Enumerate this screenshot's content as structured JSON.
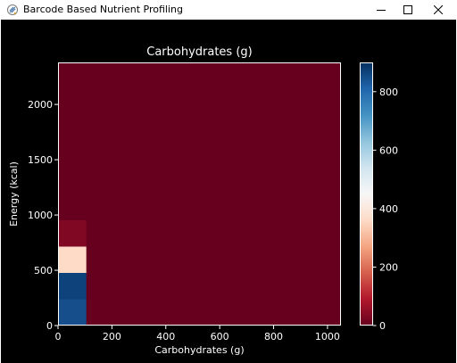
{
  "window": {
    "title": "Barcode Based Nutrient Profiling",
    "icon": "python-feather-icon",
    "controls": [
      "minimize-icon",
      "maximize-icon",
      "close-icon"
    ]
  },
  "colors": {
    "background": "#000000",
    "foreground": "#ffffff",
    "colormap": "RdBu"
  },
  "chart_data": {
    "type": "heatmap",
    "title": "Carbohydrates (g)",
    "xlabel": "Carbohydrates (g)",
    "ylabel": "Energy (kcal)",
    "xlim": [
      0,
      1050
    ],
    "ylim": [
      0,
      2380
    ],
    "x_ticks": [
      0,
      200,
      400,
      600,
      800,
      1000
    ],
    "y_ticks": [
      0,
      500,
      1000,
      1500,
      2000
    ],
    "grid": false,
    "colorbar": {
      "range": [
        0,
        900
      ],
      "ticks": [
        0,
        200,
        400,
        600,
        800
      ],
      "colormap": "RdBu"
    },
    "bin_width_x": 105,
    "bin_height_y": 238,
    "cells": [
      {
        "x0": 0,
        "y0": 0,
        "count": 850
      },
      {
        "x0": 0,
        "y0": 238,
        "count": 870
      },
      {
        "x0": 0,
        "y0": 476,
        "count": 360
      },
      {
        "x0": 0,
        "y0": 714,
        "count": 30
      }
    ],
    "default_count": 0
  }
}
